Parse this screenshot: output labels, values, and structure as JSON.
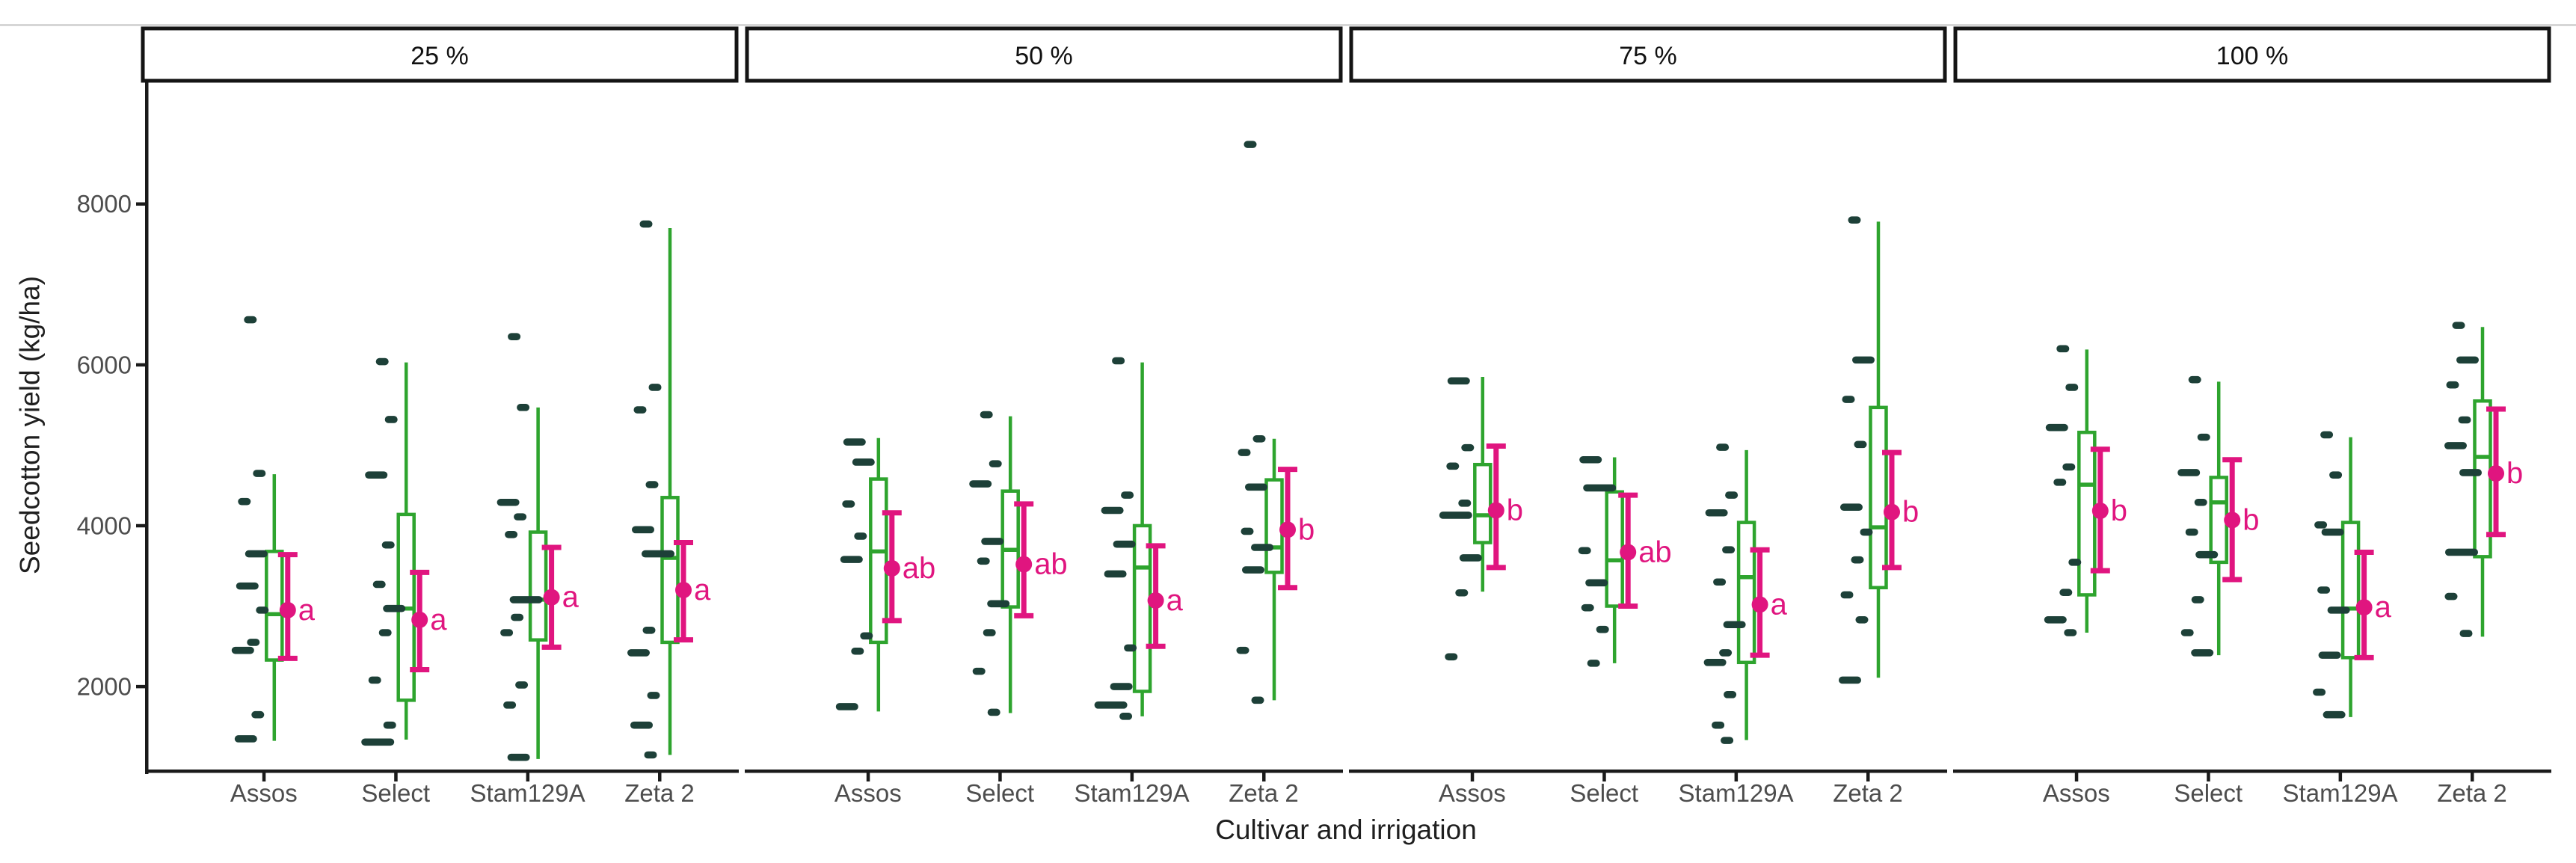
{
  "page": {
    "background": "#ffffff",
    "top_rule_color": "#d6d6d6"
  },
  "chart_data": {
    "type": "boxplot",
    "title": "",
    "xlabel": "Cultivar and irrigation",
    "ylabel": "Seedcotton yield (kg/ha)",
    "legend_position": "none",
    "grid": false,
    "yticks": [
      2000,
      4000,
      6000,
      8000
    ],
    "ylim": [
      950,
      9550
    ],
    "facet_labels": [
      "25 %",
      "50 %",
      "75 %",
      "100 %"
    ],
    "categories": [
      "Assos",
      "Select",
      "Stam129A",
      "Zeta 2"
    ],
    "colors": {
      "box": "#2EA42E",
      "points": "#1D4038",
      "mean": "#E0157F",
      "letter": "#E0157F",
      "axis_line": "#1a1a1a",
      "tick_label": "#4d4d4d",
      "axis_title": "#1f1f1f",
      "strip_border": "#141414",
      "strip_bg": "#ffffff",
      "strip_text": "#111111"
    },
    "facets": [
      {
        "label": "25 %",
        "groups": [
          {
            "category": "Assos",
            "letter": "a",
            "box": {
              "lo": 1325,
              "q1": 2330,
              "med": 2900,
              "q3": 3680,
              "hi": 4640
            },
            "mean": 2950,
            "ci": [
              2350,
              3640
            ],
            "points": [
              [
                6560,
                1
              ],
              [
                4650,
                1
              ],
              [
                4300,
                1
              ],
              [
                3650,
                2
              ],
              [
                3250,
                2
              ],
              [
                2950,
                1
              ],
              [
                2550,
                1
              ],
              [
                2450,
                2
              ],
              [
                1650,
                1
              ],
              [
                1350,
                2
              ]
            ]
          },
          {
            "category": "Select",
            "letter": "a",
            "box": {
              "lo": 1340,
              "q1": 1830,
              "med": 2970,
              "q3": 4140,
              "hi": 6030
            },
            "mean": 2830,
            "ci": [
              2210,
              3420
            ],
            "points": [
              [
                6040,
                1
              ],
              [
                5320,
                1
              ],
              [
                4630,
                2
              ],
              [
                3760,
                1
              ],
              [
                3270,
                1
              ],
              [
                2970,
                2
              ],
              [
                2670,
                1
              ],
              [
                2080,
                1
              ],
              [
                1520,
                1
              ],
              [
                1310,
                3
              ]
            ]
          },
          {
            "category": "Stam129A",
            "letter": "a",
            "box": {
              "lo": 1100,
              "q1": 2580,
              "med": 3080,
              "q3": 3920,
              "hi": 5470
            },
            "mean": 3110,
            "ci": [
              2490,
              3730
            ],
            "points": [
              [
                6350,
                1
              ],
              [
                5470,
                1
              ],
              [
                4290,
                2
              ],
              [
                4110,
                1
              ],
              [
                3890,
                1
              ],
              [
                3080,
                3
              ],
              [
                2860,
                1
              ],
              [
                2670,
                1
              ],
              [
                2020,
                1
              ],
              [
                1770,
                1
              ],
              [
                1120,
                2
              ]
            ]
          },
          {
            "category": "Zeta 2",
            "letter": "a",
            "box": {
              "lo": 1150,
              "q1": 2550,
              "med": 3600,
              "q3": 4350,
              "hi": 7700
            },
            "mean": 3200,
            "ci": [
              2580,
              3790
            ],
            "points": [
              [
                7750,
                1
              ],
              [
                5720,
                1
              ],
              [
                5440,
                1
              ],
              [
                4510,
                1
              ],
              [
                3950,
                2
              ],
              [
                3650,
                3
              ],
              [
                2700,
                1
              ],
              [
                2420,
                2
              ],
              [
                1890,
                1
              ],
              [
                1520,
                2
              ],
              [
                1150,
                1
              ]
            ]
          }
        ]
      },
      {
        "label": "50 %",
        "groups": [
          {
            "category": "Assos",
            "letter": "ab",
            "box": {
              "lo": 1690,
              "q1": 2550,
              "med": 3680,
              "q3": 4580,
              "hi": 5090
            },
            "mean": 3470,
            "ci": [
              2820,
              4160
            ],
            "points": [
              [
                5040,
                2
              ],
              [
                4790,
                2
              ],
              [
                4270,
                1
              ],
              [
                3870,
                1
              ],
              [
                3580,
                2
              ],
              [
                2630,
                1
              ],
              [
                2440,
                1
              ],
              [
                1750,
                2
              ]
            ]
          },
          {
            "category": "Select",
            "letter": "ab",
            "box": {
              "lo": 1670,
              "q1": 2990,
              "med": 3700,
              "q3": 4430,
              "hi": 5360
            },
            "mean": 3520,
            "ci": [
              2880,
              4270
            ],
            "points": [
              [
                5380,
                1
              ],
              [
                4770,
                1
              ],
              [
                4520,
                2
              ],
              [
                3805,
                2
              ],
              [
                3560,
                1
              ],
              [
                3030,
                2
              ],
              [
                2670,
                1
              ],
              [
                2190,
                1
              ],
              [
                1680,
                1
              ]
            ]
          },
          {
            "category": "Stam129A",
            "letter": "a",
            "box": {
              "lo": 1630,
              "q1": 1940,
              "med": 3480,
              "q3": 4000,
              "hi": 6030
            },
            "mean": 3070,
            "ci": [
              2500,
              3750
            ],
            "points": [
              [
                6050,
                1
              ],
              [
                4380,
                1
              ],
              [
                4190,
                2
              ],
              [
                3770,
                2
              ],
              [
                3400,
                2
              ],
              [
                2480,
                1
              ],
              [
                2000,
                2
              ],
              [
                1770,
                3
              ],
              [
                1630,
                1
              ]
            ]
          },
          {
            "category": "Zeta 2",
            "letter": "b",
            "box": {
              "lo": 1830,
              "q1": 3420,
              "med": 3730,
              "q3": 4570,
              "hi": 5080
            },
            "mean": 3950,
            "ci": [
              3230,
              4700
            ],
            "points": [
              [
                8740,
                1
              ],
              [
                5080,
                1
              ],
              [
                4910,
                1
              ],
              [
                4480,
                2
              ],
              [
                3930,
                1
              ],
              [
                3730,
                2
              ],
              [
                3450,
                2
              ],
              [
                2450,
                1
              ],
              [
                1830,
                1
              ]
            ]
          }
        ]
      },
      {
        "label": "75 %",
        "groups": [
          {
            "category": "Assos",
            "letter": "b",
            "box": {
              "lo": 3180,
              "q1": 3790,
              "med": 4130,
              "q3": 4760,
              "hi": 5850
            },
            "mean": 4190,
            "ci": [
              3480,
              4990
            ],
            "points": [
              [
                5800,
                2
              ],
              [
                4970,
                1
              ],
              [
                4740,
                1
              ],
              [
                4280,
                1
              ],
              [
                4130,
                3
              ],
              [
                3600,
                2
              ],
              [
                3165,
                1
              ],
              [
                2370,
                1
              ]
            ]
          },
          {
            "category": "Select",
            "letter": "ab",
            "box": {
              "lo": 2290,
              "q1": 3000,
              "med": 3570,
              "q3": 4420,
              "hi": 4850
            },
            "mean": 3670,
            "ci": [
              3000,
              4380
            ],
            "points": [
              [
                4820,
                2
              ],
              [
                4470,
                3
              ],
              [
                3690,
                1
              ],
              [
                3290,
                2
              ],
              [
                2980,
                1
              ],
              [
                2710,
                1
              ],
              [
                2290,
                1
              ]
            ]
          },
          {
            "category": "Stam129A",
            "letter": "a",
            "box": {
              "lo": 1335,
              "q1": 2300,
              "med": 3360,
              "q3": 4040,
              "hi": 4940
            },
            "mean": 3020,
            "ci": [
              2390,
              3700
            ],
            "points": [
              [
                4975,
                1
              ],
              [
                4380,
                1
              ],
              [
                4160,
                2
              ],
              [
                3700,
                1
              ],
              [
                3300,
                1
              ],
              [
                2770,
                2
              ],
              [
                2420,
                1
              ],
              [
                2300,
                2
              ],
              [
                1900,
                1
              ],
              [
                1520,
                1
              ],
              [
                1330,
                1
              ]
            ]
          },
          {
            "category": "Zeta 2",
            "letter": "b",
            "box": {
              "lo": 2110,
              "q1": 3230,
              "med": 3980,
              "q3": 5470,
              "hi": 7780
            },
            "mean": 4170,
            "ci": [
              3480,
              4910
            ],
            "points": [
              [
                7800,
                1
              ],
              [
                6060,
                2
              ],
              [
                5570,
                1
              ],
              [
                5010,
                1
              ],
              [
                4230,
                2
              ],
              [
                3920,
                1
              ],
              [
                3575,
                1
              ],
              [
                3140,
                1
              ],
              [
                2830,
                1
              ],
              [
                2080,
                2
              ]
            ]
          }
        ]
      },
      {
        "label": "100 %",
        "groups": [
          {
            "category": "Assos",
            "letter": "b",
            "box": {
              "lo": 2670,
              "q1": 3140,
              "med": 4510,
              "q3": 5160,
              "hi": 6190
            },
            "mean": 4185,
            "ci": [
              3440,
              4950
            ],
            "points": [
              [
                6200,
                1
              ],
              [
                5720,
                1
              ],
              [
                5220,
                2
              ],
              [
                4730,
                1
              ],
              [
                4540,
                1
              ],
              [
                3545,
                1
              ],
              [
                3170,
                1
              ],
              [
                2830,
                2
              ],
              [
                2670,
                1
              ]
            ]
          },
          {
            "category": "Select",
            "letter": "b",
            "box": {
              "lo": 2390,
              "q1": 3545,
              "med": 4290,
              "q3": 4600,
              "hi": 5790
            },
            "mean": 4070,
            "ci": [
              3330,
              4820
            ],
            "points": [
              [
                5815,
                1
              ],
              [
                5100,
                1
              ],
              [
                4660,
                2
              ],
              [
                4290,
                1
              ],
              [
                3920,
                1
              ],
              [
                3640,
                2
              ],
              [
                3080,
                1
              ],
              [
                2670,
                1
              ],
              [
                2420,
                2
              ]
            ]
          },
          {
            "category": "Stam129A",
            "letter": "a",
            "box": {
              "lo": 1620,
              "q1": 2360,
              "med": 2970,
              "q3": 4040,
              "hi": 5100
            },
            "mean": 2985,
            "ci": [
              2360,
              3670
            ],
            "points": [
              [
                5130,
                1
              ],
              [
                4630,
                1
              ],
              [
                4010,
                1
              ],
              [
                3920,
                2
              ],
              [
                3200,
                1
              ],
              [
                2950,
                2
              ],
              [
                2390,
                2
              ],
              [
                1930,
                1
              ],
              [
                1650,
                2
              ]
            ]
          },
          {
            "category": "Zeta 2",
            "letter": "b",
            "box": {
              "lo": 2620,
              "q1": 3615,
              "med": 4855,
              "q3": 5550,
              "hi": 6470
            },
            "mean": 4650,
            "ci": [
              3890,
              5450
            ],
            "points": [
              [
                6490,
                1
              ],
              [
                6060,
                2
              ],
              [
                5750,
                1
              ],
              [
                5315,
                1
              ],
              [
                4995,
                2
              ],
              [
                4660,
                2
              ],
              [
                3670,
                3
              ],
              [
                3120,
                1
              ],
              [
                2660,
                1
              ]
            ]
          }
        ]
      }
    ]
  }
}
